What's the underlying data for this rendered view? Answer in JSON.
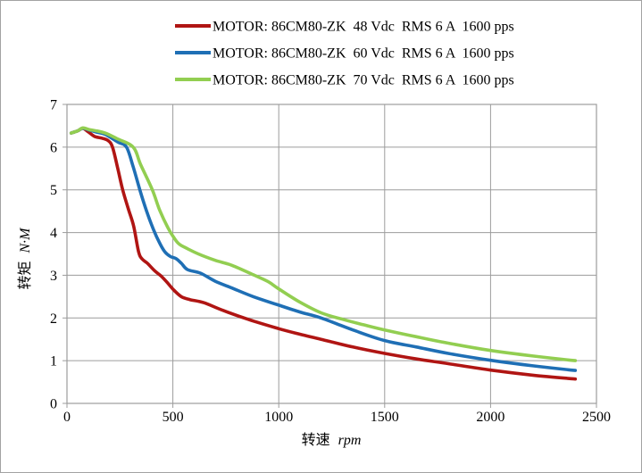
{
  "chart_data": {
    "type": "line",
    "title": "",
    "xlabel_cjk": "转速",
    "xlabel_unit": "rpm",
    "ylabel_cjk": "转矩",
    "ylabel_unit": "N·M",
    "xlim": [
      0,
      2500
    ],
    "ylim": [
      0,
      7
    ],
    "x_ticks": [
      0,
      500,
      1000,
      1500,
      2000,
      2500
    ],
    "y_ticks": [
      0,
      1,
      2,
      3,
      4,
      5,
      6,
      7
    ],
    "grid": true,
    "legend_position": "top-center",
    "colors": {
      "grid": "#9c9c9c",
      "frame": "#9c9c9c",
      "text": "#000000",
      "background": "#ffffff"
    },
    "series": [
      {
        "name": "MOTOR: 86CM80-ZK  48 Vdc  RMS 6 A  1600 pps",
        "color": "#b01513",
        "points": [
          [
            20,
            6.33
          ],
          [
            50,
            6.38
          ],
          [
            75,
            6.44
          ],
          [
            100,
            6.36
          ],
          [
            130,
            6.25
          ],
          [
            165,
            6.21
          ],
          [
            195,
            6.15
          ],
          [
            215,
            6.0
          ],
          [
            240,
            5.5
          ],
          [
            263,
            5.0
          ],
          [
            290,
            4.55
          ],
          [
            315,
            4.15
          ],
          [
            338,
            3.55
          ],
          [
            355,
            3.38
          ],
          [
            380,
            3.28
          ],
          [
            415,
            3.1
          ],
          [
            445,
            2.98
          ],
          [
            475,
            2.82
          ],
          [
            505,
            2.65
          ],
          [
            540,
            2.5
          ],
          [
            580,
            2.43
          ],
          [
            645,
            2.36
          ],
          [
            740,
            2.17
          ],
          [
            860,
            1.96
          ],
          [
            1000,
            1.75
          ],
          [
            1100,
            1.62
          ],
          [
            1200,
            1.5
          ],
          [
            1350,
            1.32
          ],
          [
            1500,
            1.17
          ],
          [
            1650,
            1.04
          ],
          [
            1800,
            0.93
          ],
          [
            2000,
            0.78
          ],
          [
            2200,
            0.66
          ],
          [
            2400,
            0.57
          ]
        ]
      },
      {
        "name": "MOTOR: 86CM80-ZK  60 Vdc  RMS 6 A  1600 pps",
        "color": "#1f6fb5",
        "points": [
          [
            20,
            6.33
          ],
          [
            50,
            6.38
          ],
          [
            75,
            6.44
          ],
          [
            105,
            6.4
          ],
          [
            140,
            6.35
          ],
          [
            180,
            6.3
          ],
          [
            240,
            6.12
          ],
          [
            281,
            6.0
          ],
          [
            312,
            5.55
          ],
          [
            344,
            5.0
          ],
          [
            376,
            4.5
          ],
          [
            410,
            4.05
          ],
          [
            438,
            3.75
          ],
          [
            462,
            3.55
          ],
          [
            488,
            3.44
          ],
          [
            515,
            3.39
          ],
          [
            540,
            3.28
          ],
          [
            570,
            3.13
          ],
          [
            630,
            3.05
          ],
          [
            700,
            2.86
          ],
          [
            780,
            2.7
          ],
          [
            880,
            2.5
          ],
          [
            1000,
            2.3
          ],
          [
            1100,
            2.14
          ],
          [
            1200,
            2.0
          ],
          [
            1350,
            1.72
          ],
          [
            1500,
            1.47
          ],
          [
            1650,
            1.32
          ],
          [
            1800,
            1.17
          ],
          [
            2000,
            1.01
          ],
          [
            2200,
            0.88
          ],
          [
            2400,
            0.77
          ]
        ]
      },
      {
        "name": "MOTOR: 86CM80-ZK  70 Vdc  RMS 6 A  1600 pps",
        "color": "#92ce51",
        "points": [
          [
            20,
            6.33
          ],
          [
            50,
            6.38
          ],
          [
            75,
            6.45
          ],
          [
            105,
            6.41
          ],
          [
            140,
            6.38
          ],
          [
            180,
            6.33
          ],
          [
            240,
            6.19
          ],
          [
            313,
            6.0
          ],
          [
            347,
            5.6
          ],
          [
            403,
            5.0
          ],
          [
            438,
            4.52
          ],
          [
            478,
            4.1
          ],
          [
            505,
            3.88
          ],
          [
            530,
            3.73
          ],
          [
            570,
            3.62
          ],
          [
            620,
            3.5
          ],
          [
            700,
            3.35
          ],
          [
            780,
            3.23
          ],
          [
            885,
            3.0
          ],
          [
            950,
            2.85
          ],
          [
            1000,
            2.68
          ],
          [
            1100,
            2.37
          ],
          [
            1200,
            2.12
          ],
          [
            1300,
            1.97
          ],
          [
            1400,
            1.84
          ],
          [
            1500,
            1.72
          ],
          [
            1650,
            1.56
          ],
          [
            1800,
            1.41
          ],
          [
            2000,
            1.24
          ],
          [
            2200,
            1.11
          ],
          [
            2400,
            1.0
          ]
        ]
      }
    ]
  }
}
